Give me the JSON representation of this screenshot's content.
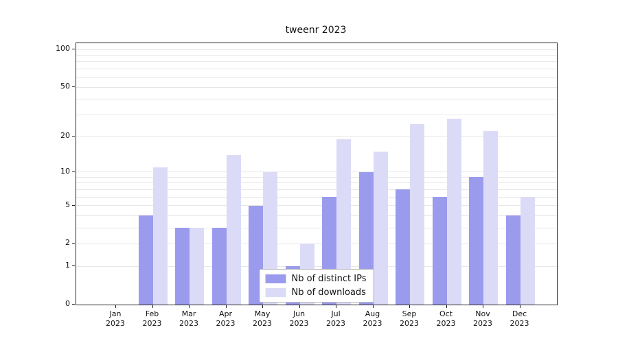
{
  "chart_data": {
    "type": "bar",
    "title": "tweenr 2023",
    "year": "2023",
    "categories": [
      "Jan",
      "Feb",
      "Mar",
      "Apr",
      "May",
      "Jun",
      "Jul",
      "Aug",
      "Sep",
      "Oct",
      "Nov",
      "Dec"
    ],
    "series": [
      {
        "name": "Nb of distinct IPs",
        "color": "#9b9bed",
        "values": [
          0,
          4,
          3,
          3,
          5,
          1,
          6,
          10,
          7,
          6,
          9,
          4
        ]
      },
      {
        "name": "Nb of downloads",
        "color": "#dbdbf8",
        "values": [
          0,
          11,
          3,
          14,
          10,
          2,
          19,
          15,
          25,
          28,
          22,
          6
        ]
      }
    ],
    "yscale": "log1p",
    "ylim": [
      0,
      112
    ],
    "yticks": [
      0,
      1,
      2,
      5,
      10,
      20,
      50,
      100
    ],
    "grid_values": [
      1,
      2,
      3,
      4,
      5,
      6,
      7,
      8,
      9,
      10,
      20,
      30,
      40,
      50,
      60,
      70,
      80,
      90,
      100
    ],
    "grid": "horizontal",
    "legend_position": "bottom-center",
    "colors": {
      "axis": "#222222",
      "gridline": "#e7e7e7",
      "background": "#ffffff"
    }
  }
}
